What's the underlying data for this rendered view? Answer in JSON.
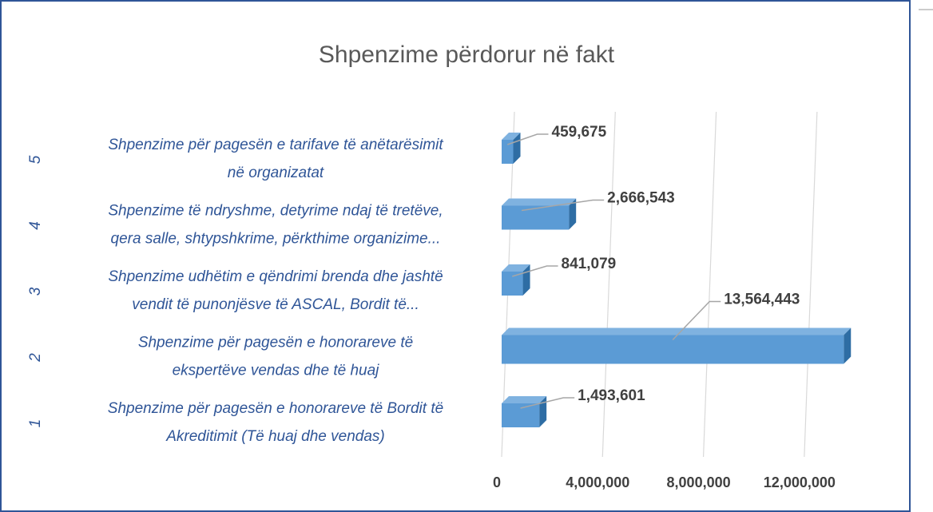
{
  "chart_data": {
    "type": "bar3d_horizontal",
    "title": "Shpenzime përdorur në fakt",
    "categories": [
      "1",
      "2",
      "3",
      "4",
      "5"
    ],
    "subcategories": [
      [
        "Shpenzime për pagesën e honorareve të Bordit të",
        "Akreditimit (Të huaj dhe vendas)"
      ],
      [
        "Shpenzime për pagesën e honorareve të",
        "ekspertëve vendas dhe të huaj"
      ],
      [
        "Shpenzime udhëtim e qëndrimi brenda dhe jashtë",
        "vendit të punonjësve të ASCAL, Bordit të..."
      ],
      [
        "Shpenzime të ndryshme, detyrime ndaj të tretëve,",
        "qera salle, shtypshkrime, përkthime organizime..."
      ],
      [
        "Shpenzime për pagesën e tarifave të anëtarësimit",
        "në organizatat"
      ]
    ],
    "values": [
      1493601,
      13564443,
      841079,
      2666543,
      459675
    ],
    "value_labels": [
      "1,493,601",
      "13,564,443",
      "841,079",
      "2,666,543",
      "459,675"
    ],
    "color": "#5b9bd5",
    "xlim": [
      0,
      14000000
    ],
    "xticks": [
      0,
      {
        "value": 4000000,
        "label": "4,000,000"
      },
      {
        "value": 8000000,
        "label": "8,000,000"
      },
      {
        "value": 12000000,
        "label": "12,000,000"
      }
    ],
    "grid": true
  }
}
